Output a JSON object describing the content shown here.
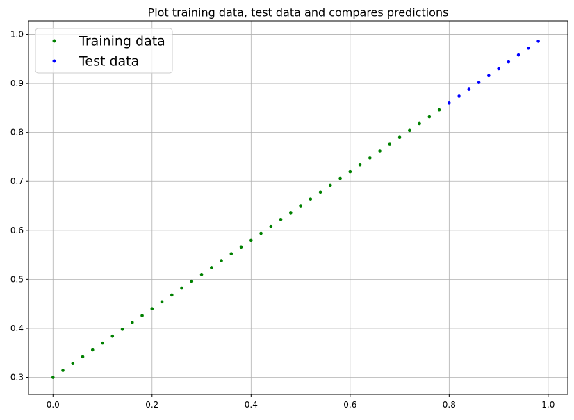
{
  "chart_data": {
    "type": "scatter",
    "title": "Plot training data, test data and compares predictions",
    "xlabel": "",
    "ylabel": "",
    "xlim": [
      -0.0495,
      1.0395
    ],
    "ylim": [
      0.2653,
      1.0277
    ],
    "xticks": [
      0.0,
      0.2,
      0.4,
      0.6,
      0.8,
      1.0
    ],
    "xtick_labels": [
      "0.0",
      "0.2",
      "0.4",
      "0.6",
      "0.8",
      "1.0"
    ],
    "yticks": [
      0.3,
      0.4,
      0.5,
      0.6,
      0.7,
      0.8,
      0.9,
      1.0
    ],
    "ytick_labels": [
      "0.3",
      "0.4",
      "0.5",
      "0.6",
      "0.7",
      "0.8",
      "0.9",
      "1.0"
    ],
    "grid": true,
    "legend_position": "top-left",
    "series": [
      {
        "name": "Training data",
        "color": "#008000",
        "x": [
          0.0,
          0.02,
          0.04,
          0.06,
          0.08,
          0.1,
          0.12,
          0.14,
          0.16,
          0.18,
          0.2,
          0.22,
          0.24,
          0.26,
          0.28,
          0.3,
          0.32,
          0.34,
          0.36,
          0.38,
          0.4,
          0.42,
          0.44,
          0.46,
          0.48,
          0.5,
          0.52,
          0.54,
          0.56,
          0.58,
          0.6,
          0.62,
          0.64,
          0.66,
          0.68,
          0.7,
          0.72,
          0.74,
          0.76,
          0.78
        ],
        "y": [
          0.3,
          0.314,
          0.328,
          0.342,
          0.356,
          0.37,
          0.384,
          0.398,
          0.412,
          0.426,
          0.44,
          0.454,
          0.468,
          0.482,
          0.496,
          0.51,
          0.524,
          0.538,
          0.552,
          0.566,
          0.58,
          0.594,
          0.608,
          0.622,
          0.636,
          0.65,
          0.664,
          0.678,
          0.692,
          0.706,
          0.72,
          0.734,
          0.748,
          0.762,
          0.776,
          0.79,
          0.804,
          0.818,
          0.832,
          0.846
        ]
      },
      {
        "name": "Test data",
        "color": "#0000ff",
        "x": [
          0.8,
          0.82,
          0.84,
          0.86,
          0.88,
          0.9,
          0.92,
          0.94,
          0.96,
          0.98
        ],
        "y": [
          0.86,
          0.874,
          0.888,
          0.902,
          0.916,
          0.93,
          0.944,
          0.958,
          0.972,
          0.986
        ]
      }
    ]
  }
}
